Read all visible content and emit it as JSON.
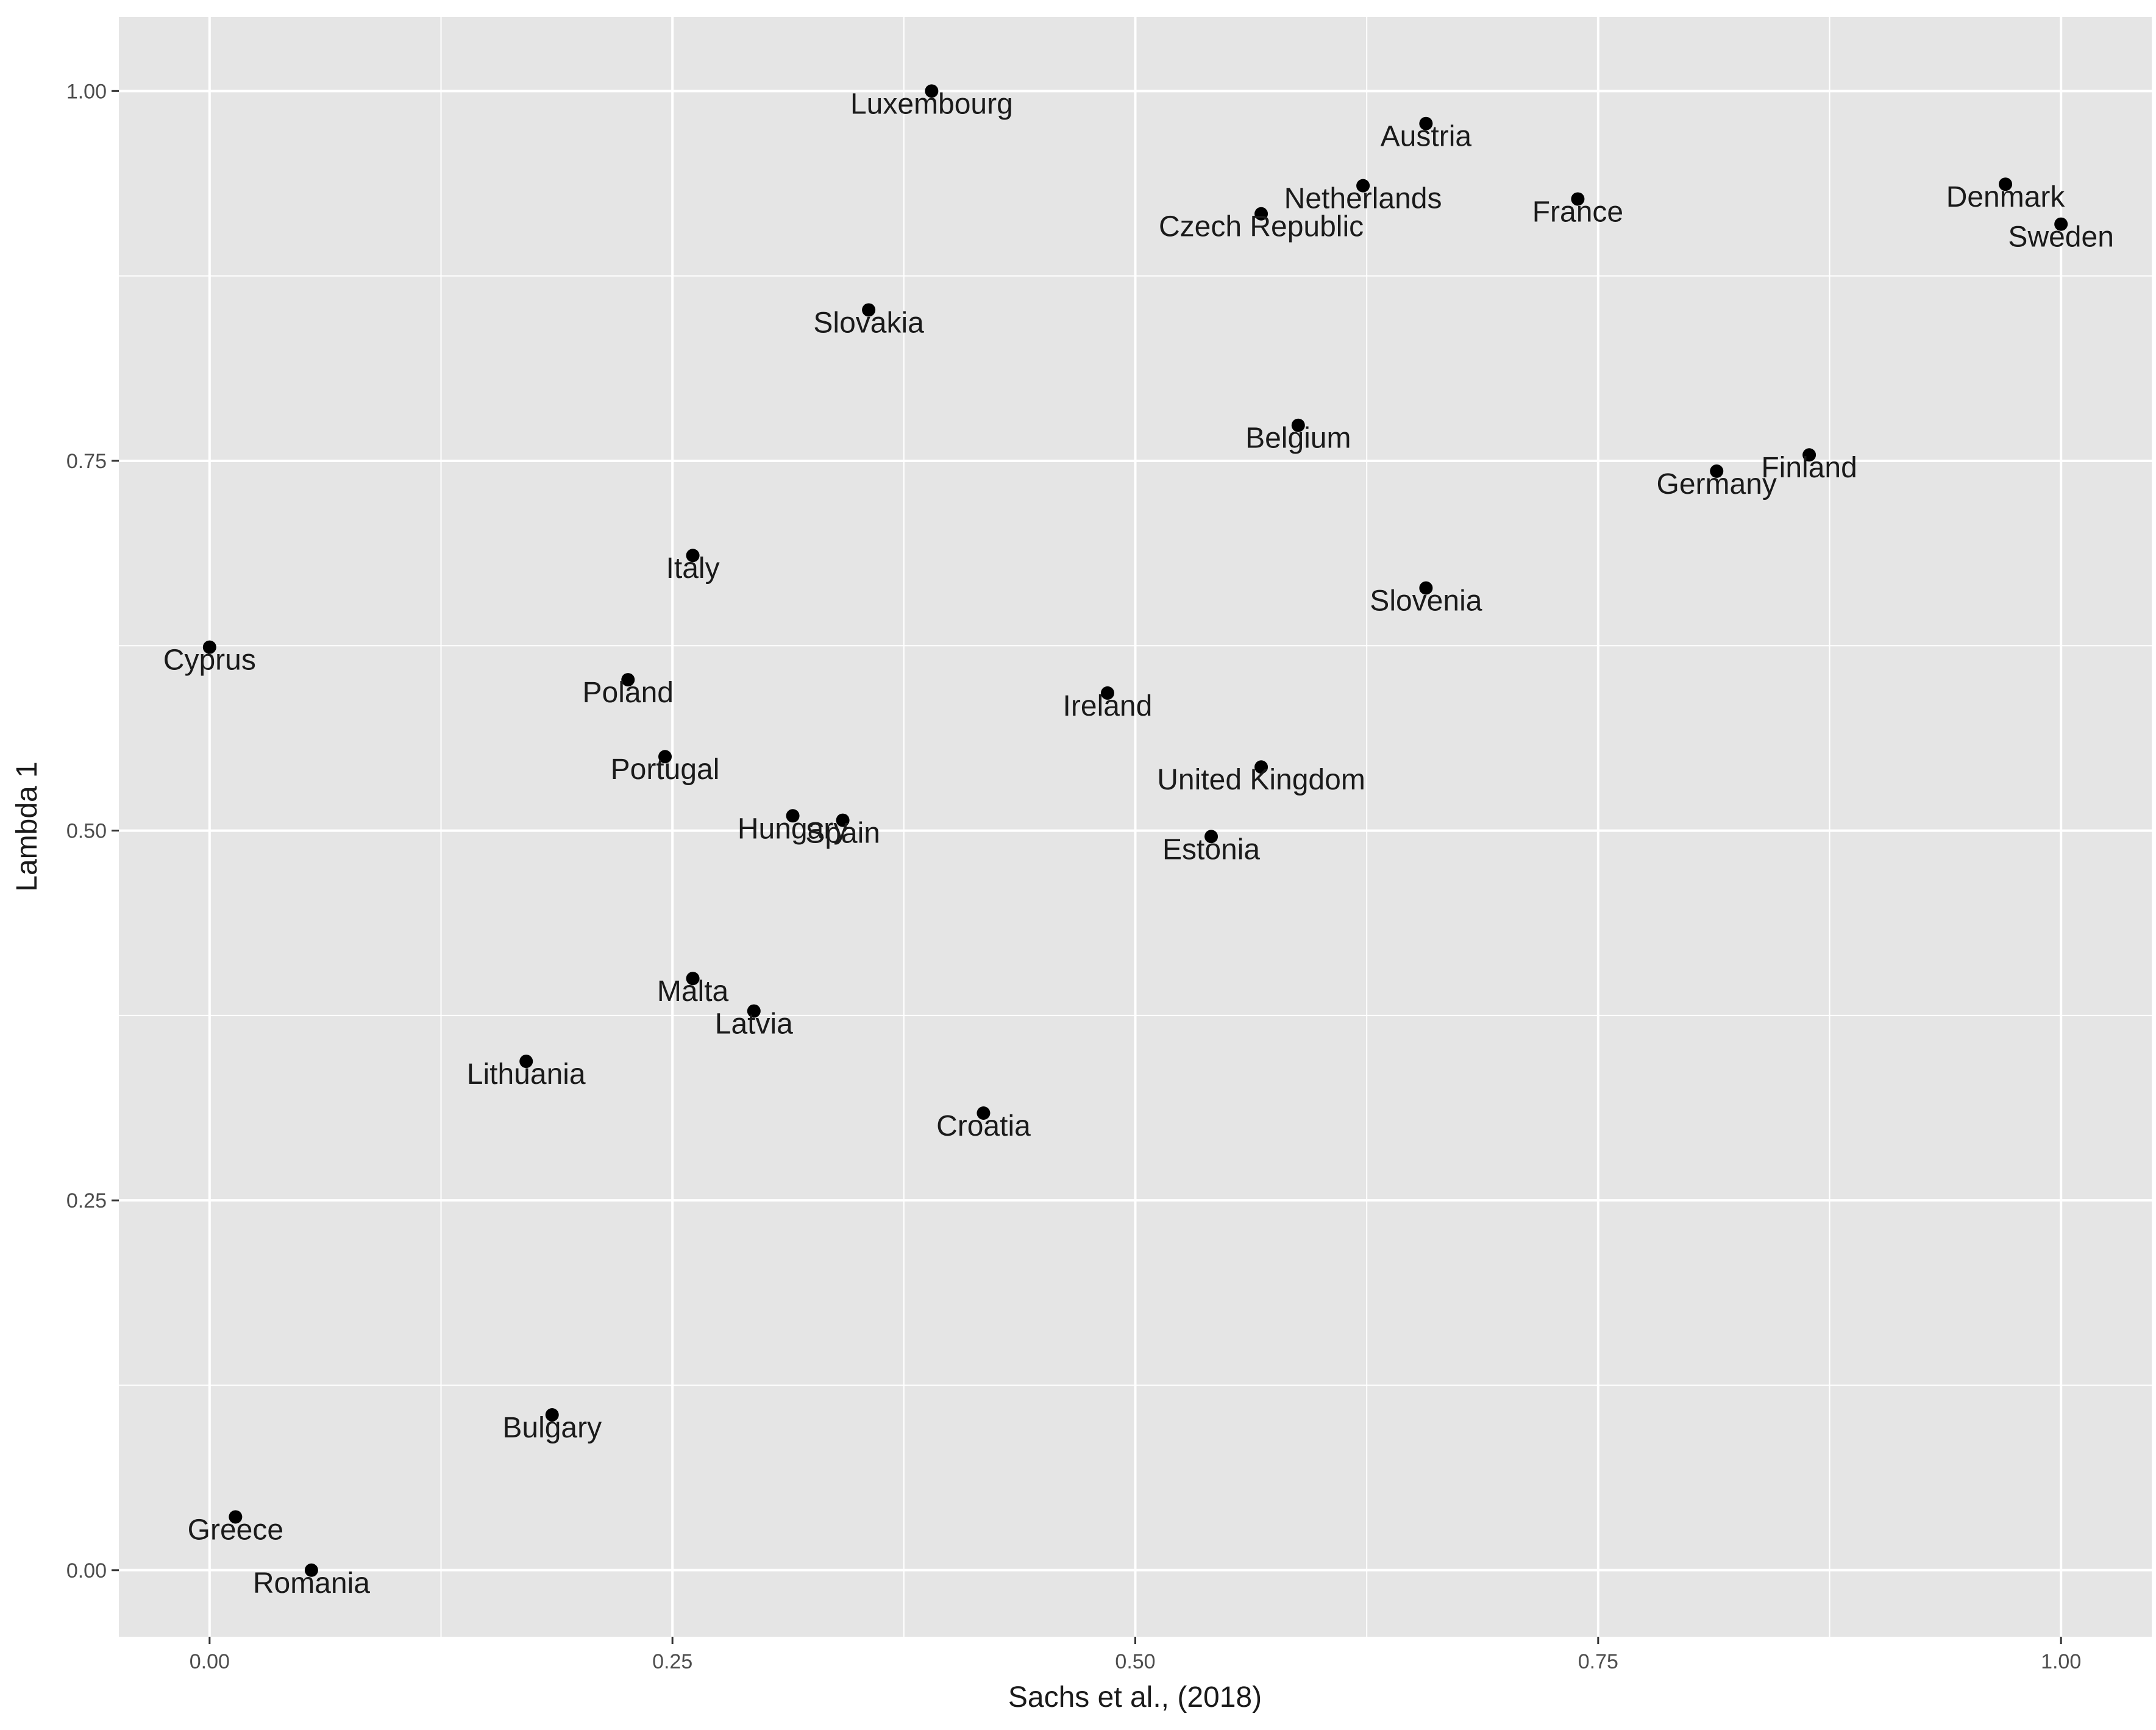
{
  "chart_data": {
    "type": "scatter",
    "xlabel": "Sachs et al., (2018)",
    "ylabel": "Lambda 1",
    "xlim": [
      -0.049,
      1.049
    ],
    "ylim": [
      -0.045,
      1.05
    ],
    "x_ticks": [
      {
        "value": 0.0,
        "label": "0.00"
      },
      {
        "value": 0.25,
        "label": "0.25"
      },
      {
        "value": 0.5,
        "label": "0.50"
      },
      {
        "value": 0.75,
        "label": "0.75"
      },
      {
        "value": 1.0,
        "label": "1.00"
      }
    ],
    "y_ticks": [
      {
        "value": 0.0,
        "label": "0.00"
      },
      {
        "value": 0.25,
        "label": "0.25"
      },
      {
        "value": 0.5,
        "label": "0.50"
      },
      {
        "value": 0.75,
        "label": "0.75"
      },
      {
        "value": 1.0,
        "label": "1.00"
      }
    ],
    "grid": true,
    "background": "#e5e5e5",
    "grid_color": "#ffffff",
    "point_color": "#000000",
    "points": [
      {
        "label": "Luxembourg",
        "x": 0.39,
        "y": 1.0
      },
      {
        "label": "Austria",
        "x": 0.657,
        "y": 0.978
      },
      {
        "label": "Netherlands",
        "x": 0.623,
        "y": 0.936
      },
      {
        "label": "Czech Republic",
        "x": 0.568,
        "y": 0.917
      },
      {
        "label": "France",
        "x": 0.739,
        "y": 0.927
      },
      {
        "label": "Denmark",
        "x": 0.97,
        "y": 0.937
      },
      {
        "label": "Sweden",
        "x": 1.0,
        "y": 0.91
      },
      {
        "label": "Slovakia",
        "x": 0.356,
        "y": 0.852
      },
      {
        "label": "Belgium",
        "x": 0.588,
        "y": 0.774
      },
      {
        "label": "Finland",
        "x": 0.864,
        "y": 0.754
      },
      {
        "label": "Germany",
        "x": 0.814,
        "y": 0.743
      },
      {
        "label": "Italy",
        "x": 0.261,
        "y": 0.686
      },
      {
        "label": "Slovenia",
        "x": 0.657,
        "y": 0.664
      },
      {
        "label": "Cyprus",
        "x": 0.0,
        "y": 0.624
      },
      {
        "label": "Poland",
        "x": 0.226,
        "y": 0.602
      },
      {
        "label": "Ireland",
        "x": 0.485,
        "y": 0.593
      },
      {
        "label": "Portugal",
        "x": 0.246,
        "y": 0.55
      },
      {
        "label": "United Kingdom",
        "x": 0.568,
        "y": 0.543
      },
      {
        "label": "Hungary",
        "x": 0.315,
        "y": 0.51
      },
      {
        "label": "Spain",
        "x": 0.342,
        "y": 0.507
      },
      {
        "label": "Estonia",
        "x": 0.541,
        "y": 0.496
      },
      {
        "label": "Malta",
        "x": 0.261,
        "y": 0.4
      },
      {
        "label": "Latvia",
        "x": 0.294,
        "y": 0.378
      },
      {
        "label": "Lithuania",
        "x": 0.171,
        "y": 0.344
      },
      {
        "label": "Croatia",
        "x": 0.418,
        "y": 0.309
      },
      {
        "label": "Bulgary",
        "x": 0.185,
        "y": 0.105
      },
      {
        "label": "Greece",
        "x": 0.014,
        "y": 0.036
      },
      {
        "label": "Romania",
        "x": 0.055,
        "y": 0.0
      }
    ]
  }
}
